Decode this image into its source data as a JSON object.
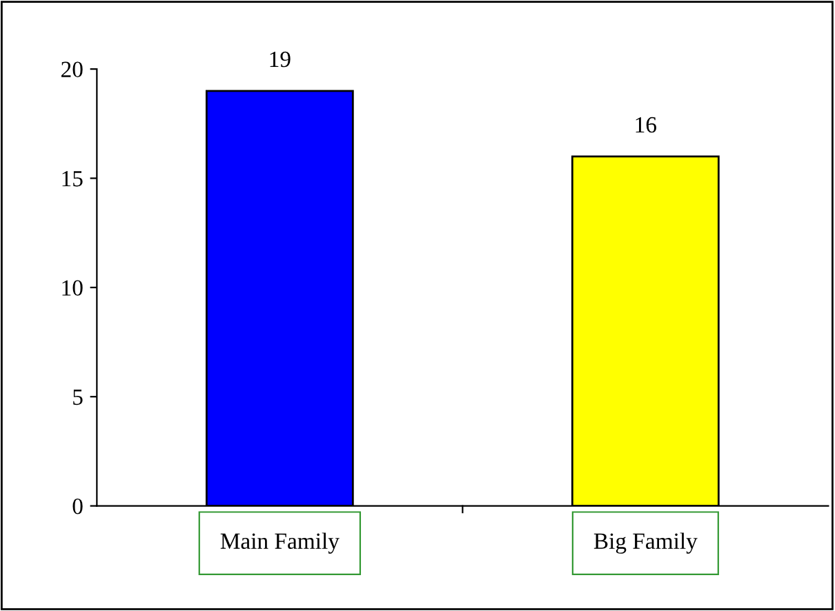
{
  "chart_data": {
    "type": "bar",
    "categories": [
      "Main Family",
      "Big Family"
    ],
    "values": [
      19,
      16
    ],
    "colors": [
      "#0000ff",
      "#ffff00"
    ],
    "ylim": [
      0,
      20
    ],
    "yticks": [
      0,
      5,
      10,
      15,
      20
    ],
    "data_labels": true,
    "grid": false,
    "legend": false
  }
}
